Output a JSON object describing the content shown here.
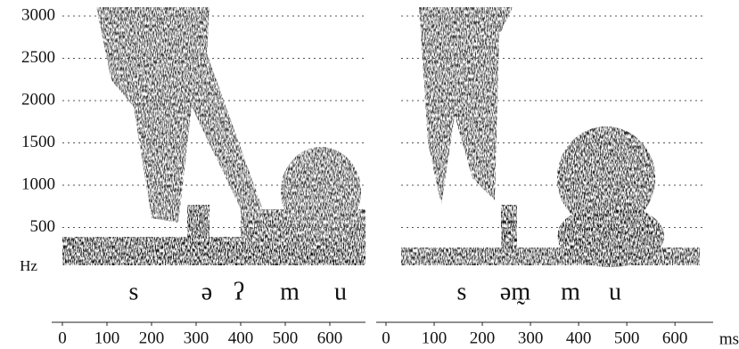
{
  "y_axis": {
    "unit": "Hz",
    "ylim": [
      0,
      3000
    ],
    "yticks": [
      500,
      1000,
      1500,
      2000,
      2500,
      3000
    ]
  },
  "x_unit": "ms",
  "panels": [
    {
      "xlim": [
        0,
        680
      ],
      "xticks": [
        0,
        100,
        200,
        300,
        400,
        500,
        600
      ],
      "segments": [
        "s",
        "ə",
        "ʔ",
        "m",
        "u"
      ]
    },
    {
      "xlim": [
        0,
        670
      ],
      "xticks": [
        0,
        100,
        200,
        300,
        400,
        500,
        600
      ],
      "segments": [
        "s",
        "əm̰",
        "m",
        "u"
      ]
    }
  ]
}
